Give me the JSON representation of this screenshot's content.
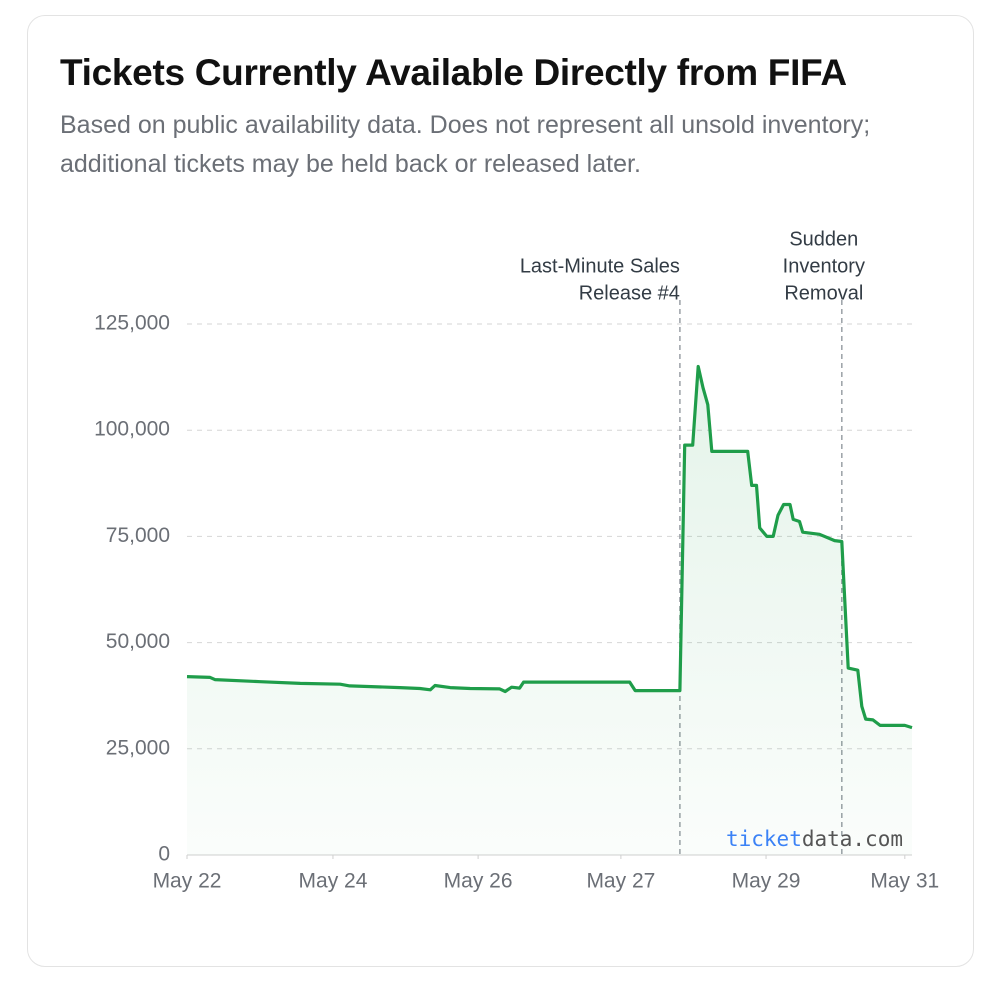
{
  "chart_data": {
    "type": "line",
    "title": "Tickets Currently Available Directly from FIFA",
    "subtitle": "Based on public availability data. Does not represent all unsold inventory; additional tickets may be held back or released later.",
    "x": [
      22.0,
      22.29,
      22.35,
      22.92,
      23.42,
      23.92,
      24.04,
      24.67,
      24.92,
      25.05,
      25.11,
      25.3,
      25.55,
      25.92,
      25.99,
      26.07,
      26.17,
      26.22,
      27.55,
      27.62,
      28.18,
      28.24,
      28.34,
      28.41,
      28.47,
      28.53,
      28.58,
      29.03,
      29.08,
      29.14,
      29.18,
      29.27,
      29.35,
      29.41,
      29.48,
      29.56,
      29.6,
      29.68,
      29.72,
      29.93,
      30.12,
      30.21,
      30.29,
      30.41,
      30.46,
      30.51,
      30.6,
      30.69,
      31.0,
      31.09
    ],
    "values": [
      42000,
      41800,
      41300,
      40800,
      40400,
      40200,
      39800,
      39400,
      39200,
      38900,
      39900,
      39400,
      39200,
      39100,
      38500,
      39500,
      39300,
      40700,
      40700,
      38700,
      38700,
      96500,
      96500,
      115000,
      110000,
      106000,
      95000,
      95000,
      87000,
      87000,
      77000,
      75000,
      75000,
      80000,
      82500,
      82500,
      79000,
      78500,
      76000,
      75500,
      74000,
      73800,
      44000,
      43500,
      35000,
      32000,
      31800,
      30500,
      30500,
      30000
    ],
    "color": "#1f9d4a",
    "xlim": [
      22,
      31.09
    ],
    "xticks": [
      {
        "value": 22,
        "label": "May 22"
      },
      {
        "value": 23.83,
        "label": "May 24"
      },
      {
        "value": 25.65,
        "label": "May 26"
      },
      {
        "value": 27.44,
        "label": "May 27"
      },
      {
        "value": 29.26,
        "label": "May 29"
      },
      {
        "value": 31.0,
        "label": "May 31"
      }
    ],
    "ylim": [
      0,
      125000
    ],
    "yticks": [
      0,
      {
        "value": 25000,
        "label": "25,000"
      },
      {
        "value": 50000,
        "label": "50,000"
      },
      {
        "value": 75000,
        "label": "75,000"
      },
      {
        "value": 100000,
        "label": "100,000"
      },
      {
        "value": 125000,
        "label": "125,000"
      }
    ],
    "grid": true,
    "annotations": [
      {
        "x": 28.18,
        "lines": [
          "Last-Minute Sales",
          "Release #4"
        ],
        "align": "end"
      },
      {
        "x": 30.21,
        "lines": [
          "Sudden",
          "Inventory",
          "Removal"
        ],
        "align": "middle"
      }
    ],
    "watermark": [
      "ticket",
      "data.com"
    ]
  }
}
